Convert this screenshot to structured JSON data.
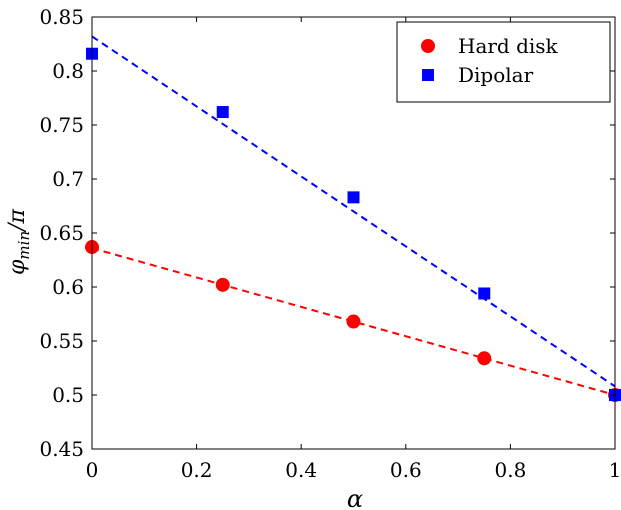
{
  "chart_data": {
    "type": "scatter",
    "xlabel": "α",
    "ylabel": {
      "base": "φ",
      "sub": "min",
      "suffix": "/π"
    },
    "xlim": [
      0,
      1
    ],
    "ylim": [
      0.45,
      0.85
    ],
    "xticks": [
      0,
      0.2,
      0.4,
      0.6,
      0.8,
      1
    ],
    "xtick_labels": [
      "0",
      "0.2",
      "0.4",
      "0.6",
      "0.8",
      "1"
    ],
    "yticks": [
      0.45,
      0.5,
      0.55,
      0.6,
      0.65,
      0.7,
      0.75,
      0.8,
      0.85
    ],
    "ytick_labels": [
      "0.45",
      "0.5",
      "0.55",
      "0.6",
      "0.65",
      "0.7",
      "0.75",
      "0.8",
      "0.85"
    ],
    "grid": false,
    "legend_position": "top-right",
    "series": [
      {
        "name": "Hard disk",
        "color": "#ff0000",
        "marker": "circle",
        "x": [
          0,
          0.25,
          0.5,
          0.75,
          1
        ],
        "y": [
          0.637,
          0.602,
          0.568,
          0.534,
          0.5
        ],
        "fit": {
          "x": [
            0,
            1
          ],
          "y": [
            0.636,
            0.5
          ]
        }
      },
      {
        "name": "Dipolar",
        "color": "#0000ff",
        "marker": "square",
        "x": [
          0,
          0.25,
          0.5,
          0.75,
          1
        ],
        "y": [
          0.816,
          0.762,
          0.683,
          0.594,
          0.5
        ],
        "fit": {
          "x": [
            0,
            1
          ],
          "y": [
            0.832,
            0.508
          ]
        }
      }
    ]
  }
}
